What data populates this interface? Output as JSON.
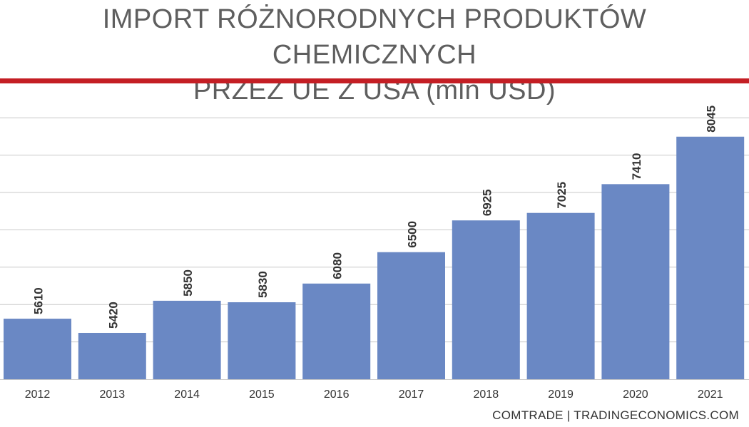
{
  "title_line1": "IMPORT RÓŻNORODNYCH PRODUKTÓW CHEMICZNYCH",
  "title_line2": "PRZEZ UE Z USA (mln USD)",
  "source": "COMTRADE | TRADINGECONOMICS.COM",
  "colors": {
    "bar": "#6a88c4",
    "accent_rule": "#c41e24",
    "grid": "#c8c8c8",
    "title": "#5e5e5e",
    "text": "#333333"
  },
  "chart_data": {
    "type": "bar",
    "categories": [
      "2012",
      "2013",
      "2014",
      "2015",
      "2016",
      "2017",
      "2018",
      "2019",
      "2020",
      "2021"
    ],
    "values": [
      5610,
      5420,
      5850,
      5830,
      6080,
      6500,
      6925,
      7025,
      7410,
      8045
    ],
    "ylim": [
      4800,
      8300
    ],
    "grid": true,
    "y_tick_labels_shown": false,
    "data_labels": true,
    "data_label_rotation": -90
  }
}
